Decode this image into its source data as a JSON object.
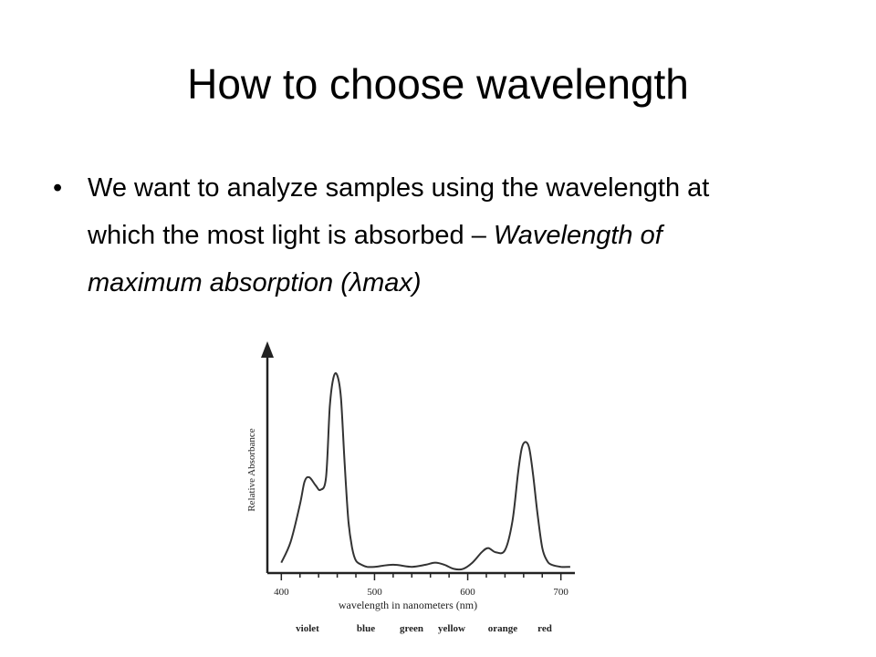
{
  "slide": {
    "title": "How to choose wavelength",
    "bullet": {
      "symbol": "•",
      "text_plain": "We want to analyze samples using the wavelength at which the most light is absorbed – ",
      "text_italic": "Wavelength of maximum absorption (λmax)"
    }
  },
  "chart_data": {
    "type": "line",
    "title": "",
    "xlabel": "wavelength in nanometers (nm)",
    "ylabel": "Relative Absorbance",
    "xlim": [
      385,
      715
    ],
    "ylim": [
      0,
      1
    ],
    "x_ticks": [
      400,
      500,
      600,
      700
    ],
    "x_tick_labels": [
      "400",
      "500",
      "600",
      "700"
    ],
    "grid": false,
    "legend": "none",
    "color_bands": [
      "violet",
      "blue",
      "green",
      "yellow",
      "orange",
      "red"
    ],
    "series": [
      {
        "x": [
          400,
          410,
          420,
          425,
          430,
          437,
          442,
          448,
          452,
          456,
          460,
          464,
          468,
          472,
          476,
          480,
          486,
          492,
          500,
          520,
          540,
          555,
          565,
          575,
          585,
          595,
          605,
          615,
          622,
          630,
          640,
          648,
          654,
          658,
          662,
          666,
          670,
          675,
          680,
          685,
          690,
          700,
          710
        ],
        "y": [
          0.05,
          0.15,
          0.33,
          0.44,
          0.46,
          0.42,
          0.4,
          0.46,
          0.8,
          0.94,
          0.95,
          0.84,
          0.52,
          0.25,
          0.12,
          0.06,
          0.04,
          0.03,
          0.03,
          0.04,
          0.03,
          0.04,
          0.05,
          0.04,
          0.02,
          0.02,
          0.05,
          0.1,
          0.12,
          0.1,
          0.11,
          0.25,
          0.48,
          0.6,
          0.63,
          0.6,
          0.48,
          0.28,
          0.12,
          0.06,
          0.04,
          0.03,
          0.03
        ]
      }
    ]
  },
  "colors": {
    "text": "#000000",
    "curve": "#333333",
    "axis": "#222222"
  }
}
